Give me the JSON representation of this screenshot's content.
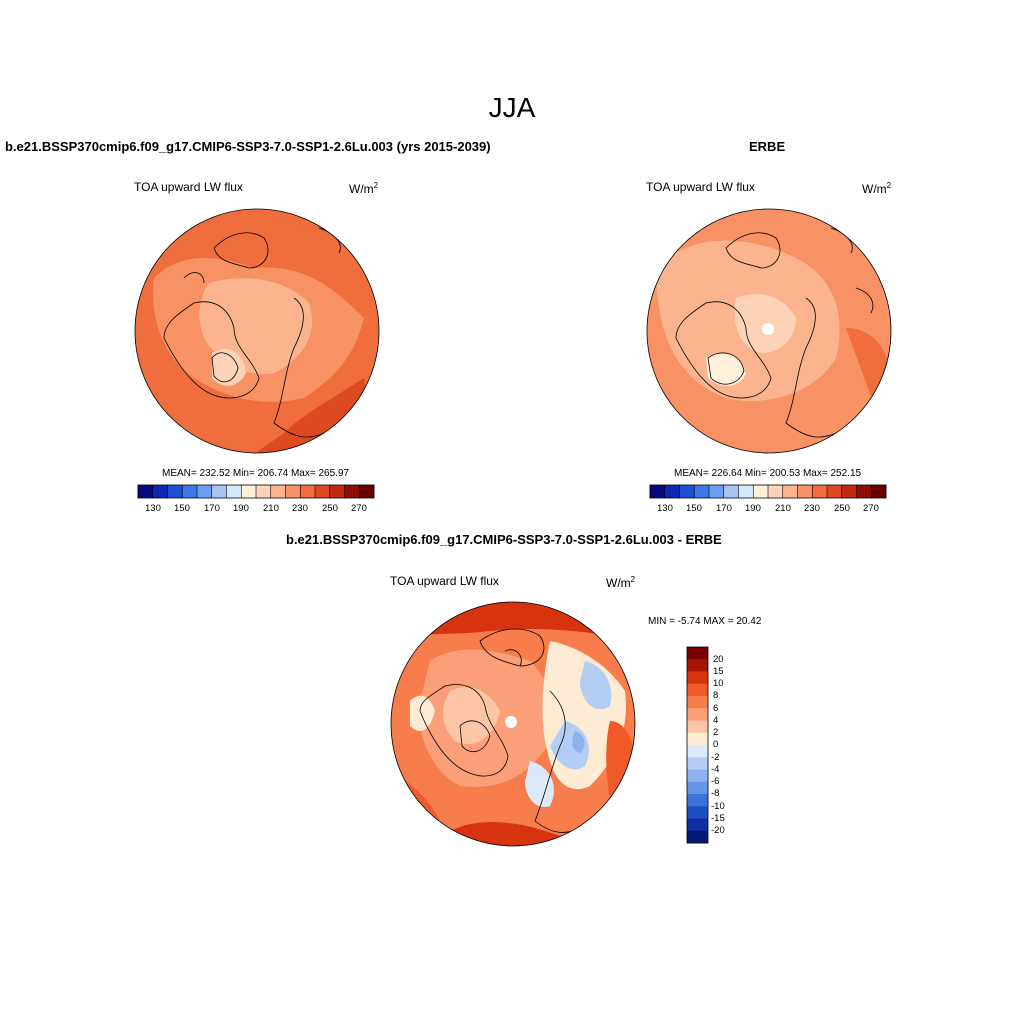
{
  "main_title": "JJA",
  "panels": [
    {
      "title": "b.e21.BSSP370cmip6.f09_g17.CMIP6-SSP3-7.0-SSP1-2.6Lu.003 (yrs 2015-2039)",
      "variable": "TOA upward LW flux",
      "units_base": "W/m",
      "units_exp": "2",
      "stats": "MEAN= 232.52  Min= 206.74  Max= 265.97",
      "colorbar_labels": [
        "130",
        "150",
        "170",
        "190",
        "210",
        "230",
        "250",
        "270"
      ]
    },
    {
      "title": "ERBE",
      "variable": "TOA upward LW flux",
      "units_base": "W/m",
      "units_exp": "2",
      "stats": "MEAN= 226.64  Min= 200.53  Max= 252.15",
      "colorbar_labels": [
        "130",
        "150",
        "170",
        "190",
        "210",
        "230",
        "250",
        "270"
      ]
    },
    {
      "title": "b.e21.BSSP370cmip6.f09_g17.CMIP6-SSP3-7.0-SSP1-2.6Lu.003 - ERBE",
      "variable": "TOA upward LW flux",
      "units_base": "W/m",
      "units_exp": "2",
      "stats": "MIN =  -5.74 MAX =  20.42",
      "colorbar_labels": [
        "20",
        "15",
        "10",
        "8",
        "6",
        "4",
        "2",
        "0",
        "-2",
        "-4",
        "-6",
        "-8",
        "-10",
        "-15",
        "-20"
      ]
    }
  ],
  "colors": {
    "abs_scale": [
      "#0a0a80",
      "#1025b0",
      "#1a4fd6",
      "#3d78e8",
      "#6d9ef0",
      "#a6c4f5",
      "#d8e8fb",
      "#fff0dc",
      "#fdd3b8",
      "#fbb48e",
      "#f89164",
      "#f06d3d",
      "#dd4a22",
      "#c02a10",
      "#8f0c06",
      "#6a0000"
    ],
    "diff_scale": [
      "#7a0000",
      "#a61405",
      "#d5340f",
      "#ef5a28",
      "#f77d4c",
      "#fa9f78",
      "#fcc6a6",
      "#fdebd3",
      "#dce9fa",
      "#b4cdf5",
      "#8fb2ee",
      "#6694e6",
      "#3f72db",
      "#1d4ec4",
      "#0e2ea2",
      "#061a74"
    ],
    "land_line": "#000000"
  }
}
